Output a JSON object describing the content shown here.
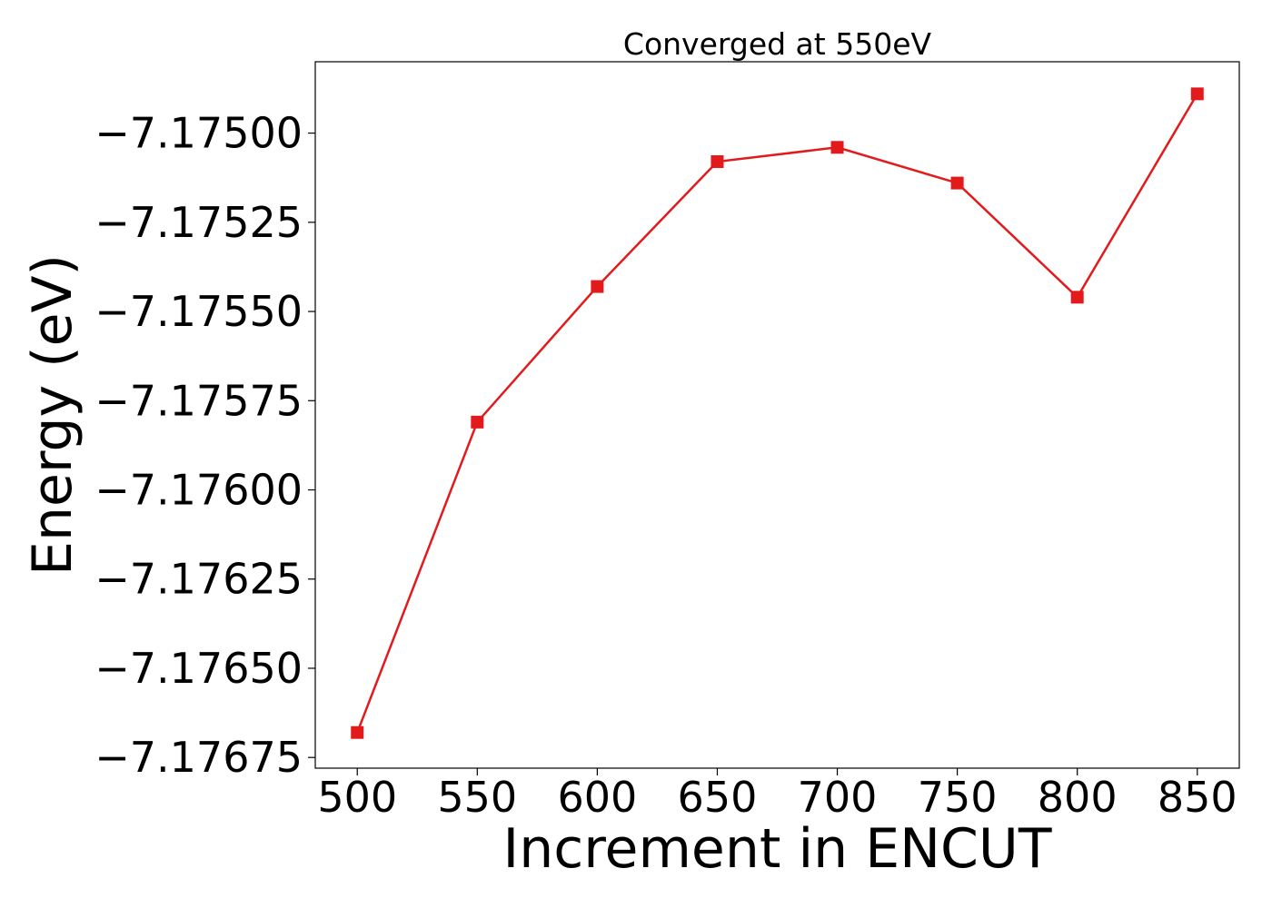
{
  "chart_data": {
    "type": "line",
    "title": "Converged at 550eV",
    "xlabel": "Increment in ENCUT",
    "ylabel": "Energy (eV)",
    "x": [
      500,
      550,
      600,
      650,
      700,
      750,
      800,
      850
    ],
    "series": [
      {
        "values": [
          -7.17668,
          -7.17581,
          -7.17543,
          -7.17508,
          -7.17504,
          -7.17514,
          -7.17546,
          -7.17489
        ],
        "color": "#e31a1c",
        "marker": "square"
      }
    ],
    "xticks": [
      500,
      550,
      600,
      650,
      700,
      750,
      800,
      850
    ],
    "xtick_labels": [
      "500",
      "550",
      "600",
      "650",
      "700",
      "750",
      "800",
      "850"
    ],
    "yticks": [
      -7.175,
      -7.17525,
      -7.1755,
      -7.17575,
      -7.176,
      -7.17625,
      -7.1765,
      -7.17675
    ],
    "ytick_labels": [
      "−7.17500",
      "−7.17525",
      "−7.17550",
      "−7.17575",
      "−7.17600",
      "−7.17625",
      "−7.17650",
      "−7.17675"
    ],
    "xlim": [
      482.5,
      867.5
    ],
    "ylim": [
      -7.17678,
      -7.1748
    ],
    "grid": false,
    "legend": "none"
  }
}
